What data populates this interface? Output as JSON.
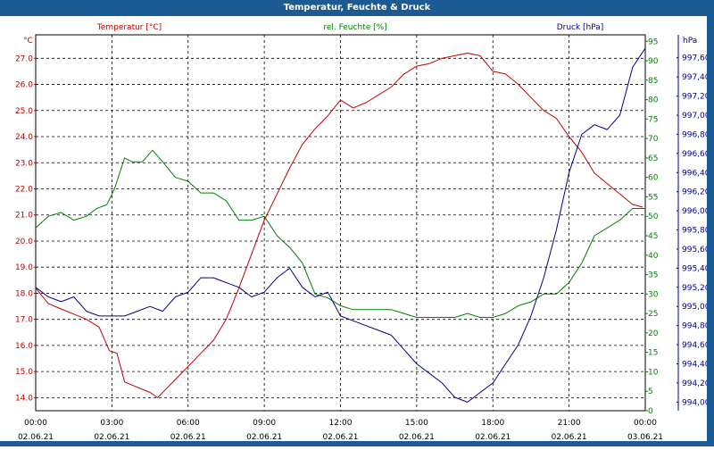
{
  "window": {
    "title": "Temperatur, Feuchte & Druck"
  },
  "colors": {
    "temperature": "#c00000",
    "humidity": "#008000",
    "pressure": "#00008b",
    "frame": "#1c5a93",
    "axis_text": "#000000"
  },
  "chart_data": {
    "type": "line",
    "title": "Temperatur, Feuchte & Druck",
    "x_tick_labels": [
      {
        "time": "00:00",
        "date": "02.06.21"
      },
      {
        "time": "03:00",
        "date": "02.06.21"
      },
      {
        "time": "06:00",
        "date": "02.06.21"
      },
      {
        "time": "09:00",
        "date": "02.06.21"
      },
      {
        "time": "12:00",
        "date": "02.06.21"
      },
      {
        "time": "15:00",
        "date": "02.06.21"
      },
      {
        "time": "18:00",
        "date": "02.06.21"
      },
      {
        "time": "21:00",
        "date": "02.06.21"
      },
      {
        "time": "00:00",
        "date": "03.06.21"
      }
    ],
    "xlim_hours": [
      0,
      24
    ],
    "axes": {
      "temperature": {
        "unit": "°C",
        "legend": "Temperatur [°C]",
        "ylim": [
          13.5,
          27.9
        ],
        "ticks": [
          "14.0",
          "15.0",
          "16.0",
          "17.0",
          "18.0",
          "19.0",
          "20.0",
          "21.0",
          "22.0",
          "23.0",
          "24.0",
          "25.0",
          "26.0",
          "27.0"
        ]
      },
      "humidity": {
        "unit": "%",
        "legend": "rel. Feuchte [%]",
        "ylim": [
          0,
          96.667
        ],
        "ticks": [
          "0",
          "5",
          "10",
          "15",
          "20",
          "25",
          "30",
          "35",
          "40",
          "45",
          "50",
          "55",
          "60",
          "65",
          "70",
          "75",
          "80",
          "85",
          "90",
          "95"
        ]
      },
      "pressure": {
        "unit": "hPa",
        "legend": "Druck [hPa]",
        "ylim": [
          993.91,
          997.84
        ],
        "ticks": [
          "994,00",
          "994,20",
          "994,40",
          "994,60",
          "994,80",
          "995,00",
          "995,20",
          "995,40",
          "995,60",
          "995,80",
          "996,00",
          "996,20",
          "996,40",
          "996,60",
          "996,80",
          "997,00",
          "997,20",
          "997,40",
          "997,60"
        ]
      }
    },
    "series": [
      {
        "name": "Temperatur [°C]",
        "axis": "temperature",
        "color": "#c00000",
        "x": [
          0,
          0.5,
          1,
          1.5,
          2,
          2.5,
          2.9,
          3.2,
          3.5,
          4,
          4.5,
          4.8,
          5.2,
          5.6,
          6,
          6.5,
          7,
          7.5,
          8,
          8.5,
          9,
          9.5,
          10,
          10.5,
          11,
          11.5,
          12,
          12.5,
          13,
          13.5,
          14,
          14.5,
          15,
          15.5,
          16,
          16.5,
          17,
          17.5,
          18,
          18.5,
          19,
          19.5,
          20,
          20.5,
          21,
          21.5,
          22,
          22.5,
          23,
          23.5,
          23.9
        ],
        "y": [
          18.2,
          17.6,
          17.4,
          17.2,
          17.0,
          16.7,
          15.8,
          15.7,
          14.6,
          14.4,
          14.2,
          14.0,
          14.4,
          14.8,
          15.2,
          15.7,
          16.2,
          17.0,
          18.2,
          19.5,
          20.8,
          21.8,
          22.8,
          23.7,
          24.3,
          24.8,
          25.4,
          25.1,
          25.3,
          25.6,
          25.9,
          26.4,
          26.7,
          26.8,
          27.0,
          27.1,
          27.2,
          27.1,
          26.5,
          26.4,
          26.0,
          25.5,
          25.0,
          24.7,
          24.0,
          23.4,
          22.6,
          22.2,
          21.8,
          21.4,
          21.3
        ]
      },
      {
        "name": "rel. Feuchte [%]",
        "axis": "humidity",
        "color": "#008000",
        "x": [
          0,
          0.5,
          1,
          1.5,
          2,
          2.4,
          2.8,
          3.1,
          3.5,
          3.8,
          4.2,
          4.6,
          5,
          5.5,
          6,
          6.5,
          7,
          7.5,
          8,
          8.5,
          9,
          9.5,
          10,
          10.5,
          11,
          11.5,
          12,
          12.5,
          13,
          13.5,
          14,
          14.5,
          15,
          15.5,
          16,
          16.5,
          17,
          17.5,
          18,
          18.5,
          19,
          19.5,
          20,
          20.5,
          21,
          21.5,
          22,
          22.5,
          23,
          23.5,
          24
        ],
        "y": [
          47,
          50,
          51,
          49,
          50,
          52,
          53,
          57,
          65,
          64,
          64,
          67,
          64,
          60,
          59,
          56,
          56,
          54,
          49,
          49,
          50,
          45,
          42,
          38,
          30,
          29,
          27,
          26,
          26,
          26,
          26,
          25,
          24,
          24,
          24,
          24,
          25,
          24,
          24,
          25,
          27,
          28,
          30,
          30,
          33,
          38,
          45,
          47,
          49,
          52,
          52
        ]
      },
      {
        "name": "Druck [hPa]",
        "axis": "pressure",
        "color": "#00008b",
        "x": [
          0,
          0.5,
          1,
          1.5,
          2,
          2.5,
          3,
          3.5,
          4,
          4.5,
          5,
          5.5,
          6,
          6.5,
          7,
          7.5,
          8,
          8.5,
          9,
          9.5,
          10,
          10.5,
          11,
          11.5,
          12,
          12.5,
          13,
          13.5,
          14,
          14.5,
          15,
          15.5,
          16,
          16.5,
          17,
          17.5,
          18,
          18.5,
          19,
          19.5,
          20,
          20.5,
          21,
          21.5,
          22,
          22.5,
          23,
          23.5,
          24
        ],
        "y": [
          995.2,
          995.1,
          995.05,
          995.1,
          994.95,
          994.9,
          994.9,
          994.9,
          994.95,
          995.0,
          994.95,
          995.1,
          995.15,
          995.3,
          995.3,
          995.25,
          995.2,
          995.1,
          995.15,
          995.3,
          995.4,
          995.2,
          995.1,
          995.15,
          994.9,
          994.85,
          994.8,
          994.75,
          994.7,
          994.55,
          994.4,
          994.3,
          994.2,
          994.05,
          994.0,
          994.1,
          994.2,
          994.4,
          994.6,
          994.9,
          995.3,
          995.8,
          996.4,
          996.8,
          996.9,
          996.85,
          997.0,
          997.5,
          997.7
        ]
      }
    ]
  }
}
